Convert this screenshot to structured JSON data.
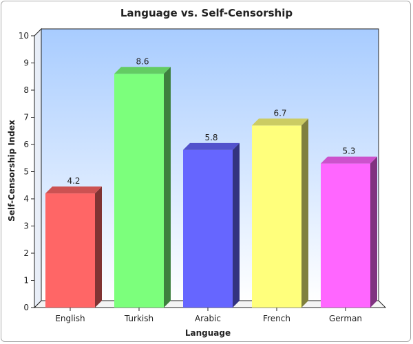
{
  "chart_data": {
    "type": "bar",
    "title": "Language vs. Self-Censorship",
    "xlabel": "Language",
    "ylabel": "Self-Censorship Index",
    "categories": [
      "English",
      "Turkish",
      "Arabic",
      "French",
      "German"
    ],
    "values": [
      4.2,
      8.6,
      5.8,
      6.7,
      5.3
    ],
    "value_labels": [
      "4.2",
      "8.6",
      "5.8",
      "6.7",
      "5.3"
    ],
    "ylim": [
      0,
      10
    ],
    "y_ticks": [
      "0",
      "1",
      "2",
      "3",
      "4",
      "5",
      "6",
      "7",
      "8",
      "9",
      "10"
    ],
    "colors": [
      "#ff6666",
      "#7cff7c",
      "#6666ff",
      "#ffff7c",
      "#ff66ff"
    ],
    "background_gradient": [
      "#a8ccff",
      "#ffffff"
    ],
    "grid": false,
    "legend": "none",
    "style": "3d"
  }
}
